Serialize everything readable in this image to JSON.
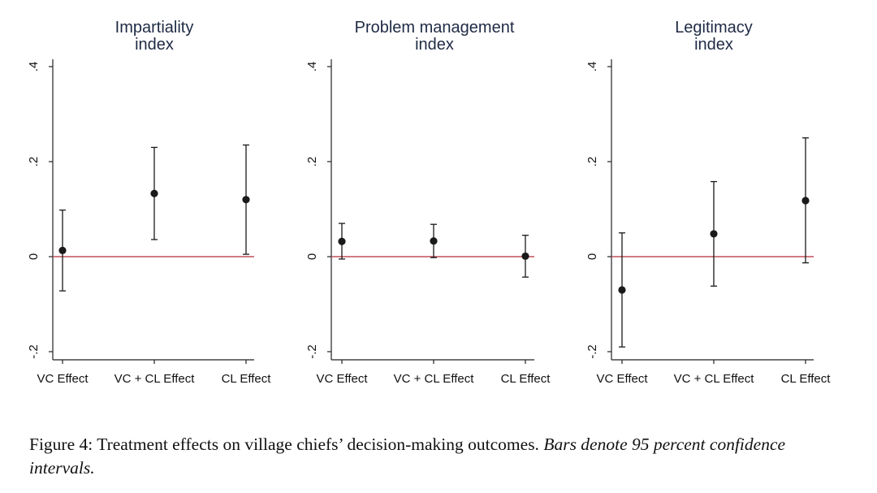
{
  "chart_data": [
    {
      "type": "scatter",
      "title": [
        "Impartiality",
        "index"
      ],
      "categories": [
        "VC Effect",
        "VC + CL Effect",
        "CL Effect"
      ],
      "estimates": [
        0.013,
        0.133,
        0.12
      ],
      "ci_low": [
        -0.072,
        0.036,
        0.005
      ],
      "ci_high": [
        0.098,
        0.23,
        0.235
      ],
      "yticks": [
        -0.2,
        0,
        0.2,
        0.4
      ],
      "ytick_labels": [
        "-.2",
        "0",
        ".2",
        ".4"
      ],
      "ylim": [
        -0.2,
        0.4
      ],
      "reference_line": 0,
      "grid": false
    },
    {
      "type": "scatter",
      "title": [
        "Problem management",
        "index"
      ],
      "categories": [
        "VC Effect",
        "VC + CL Effect",
        "CL Effect"
      ],
      "estimates": [
        0.032,
        0.033,
        0.001
      ],
      "ci_low": [
        -0.005,
        -0.002,
        -0.043
      ],
      "ci_high": [
        0.07,
        0.068,
        0.045
      ],
      "yticks": [
        -0.2,
        0,
        0.2,
        0.4
      ],
      "ytick_labels": [
        "-.2",
        "0",
        ".2",
        ".4"
      ],
      "ylim": [
        -0.2,
        0.4
      ],
      "reference_line": 0,
      "grid": false
    },
    {
      "type": "scatter",
      "title": [
        "Legitimacy",
        "index"
      ],
      "categories": [
        "VC Effect",
        "VC + CL Effect",
        "CL Effect"
      ],
      "estimates": [
        -0.07,
        0.048,
        0.118
      ],
      "ci_low": [
        -0.19,
        -0.062,
        -0.013
      ],
      "ci_high": [
        0.05,
        0.158,
        0.25
      ],
      "yticks": [
        -0.2,
        0,
        0.2,
        0.4
      ],
      "ytick_labels": [
        "-.2",
        "0",
        ".2",
        ".4"
      ],
      "ylim": [
        -0.2,
        0.4
      ],
      "reference_line": 0,
      "grid": false
    }
  ],
  "colors": {
    "marker": "#1a1a1a",
    "axis": "#222222",
    "reference_line": "#c0505a",
    "title": "#1e2a44"
  },
  "caption": {
    "main": "Figure 4: Treatment effects on village chiefs’ decision-making outcomes. ",
    "note": "Bars denote 95 percent confidence intervals."
  }
}
